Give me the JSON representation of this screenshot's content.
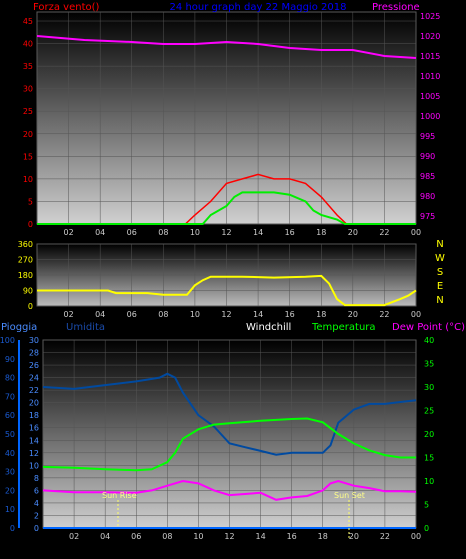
{
  "header": {
    "left_label": "Forza vento()",
    "center_label": "24 hour graph day  22 Maggio 2018",
    "right_label": "Pressione"
  },
  "panel3_header": {
    "pioggia": "Pioggia",
    "umidita": "Umidita",
    "windchill": "Windchill",
    "temperatura": "Temperatura",
    "dewpoint": "Dew Point (°C)"
  },
  "compass": [
    "N",
    "W",
    "S",
    "E",
    "N"
  ],
  "annotations": {
    "sunrise": "Sun Rise",
    "sunset": "Sun Set"
  },
  "colors": {
    "wind": "#ff0000",
    "gust": "#00ee00",
    "pressure": "#ff00ff",
    "direction": "#ffff00",
    "humidity": "#004aa0",
    "temperature": "#00ff00",
    "dewpoint": "#ff00ff",
    "rain": "#0066ff"
  },
  "chart_data": [
    {
      "type": "line",
      "x_ticks": [
        "02",
        "04",
        "06",
        "08",
        "10",
        "12",
        "14",
        "16",
        "18",
        "20",
        "22",
        "00"
      ],
      "left_axis": {
        "label": "Forza vento()",
        "ticks": [
          0,
          5,
          10,
          15,
          20,
          25,
          30,
          35,
          40,
          45
        ],
        "ylim": [
          0,
          47
        ]
      },
      "right_axis": {
        "label": "Pressione",
        "ticks": [
          975,
          980,
          985,
          990,
          995,
          1000,
          1005,
          1010,
          1015,
          1020,
          1025
        ],
        "ylim": [
          973,
          1026
        ]
      },
      "series": [
        {
          "axis": "right",
          "points": [
            [
              0,
              1020
            ],
            [
              3,
              1019
            ],
            [
              6,
              1018.5
            ],
            [
              8,
              1018
            ],
            [
              10,
              1018
            ],
            [
              12,
              1018.5
            ],
            [
              14,
              1018
            ],
            [
              16,
              1017
            ],
            [
              18,
              1016.5
            ],
            [
              20,
              1016.5
            ],
            [
              22,
              1015
            ],
            [
              24,
              1014.5
            ]
          ]
        },
        {
          "axis": "left",
          "points": [
            [
              0,
              0
            ],
            [
              9.4,
              0
            ],
            [
              10,
              2
            ],
            [
              11,
              5
            ],
            [
              12,
              9
            ],
            [
              13,
              10
            ],
            [
              14,
              11
            ],
            [
              15,
              10
            ],
            [
              16,
              10
            ],
            [
              17,
              9
            ],
            [
              18,
              6
            ],
            [
              19,
              2
            ],
            [
              19.6,
              0
            ],
            [
              24,
              0
            ]
          ]
        },
        {
          "axis": "left",
          "points": [
            [
              0,
              0
            ],
            [
              10.5,
              0
            ],
            [
              11,
              2
            ],
            [
              12,
              4
            ],
            [
              12.5,
              6
            ],
            [
              13,
              7
            ],
            [
              14,
              7
            ],
            [
              15,
              7
            ],
            [
              16,
              6.5
            ],
            [
              17,
              5
            ],
            [
              17.5,
              3
            ],
            [
              18,
              2
            ],
            [
              19,
              1
            ],
            [
              19.5,
              0
            ],
            [
              24,
              0
            ]
          ]
        }
      ]
    },
    {
      "type": "line",
      "x_ticks": [
        "02",
        "04",
        "06",
        "08",
        "10",
        "12",
        "14",
        "16",
        "18",
        "20",
        "22",
        "00"
      ],
      "left_axis": {
        "ticks": [
          0,
          90,
          180,
          270,
          360
        ],
        "ylim": [
          0,
          360
        ]
      },
      "series": [
        {
          "axis": "left",
          "points": [
            [
              0,
              90
            ],
            [
              4.5,
              90
            ],
            [
              5,
              75
            ],
            [
              7,
              75
            ],
            [
              8,
              65
            ],
            [
              9.5,
              65
            ],
            [
              10,
              120
            ],
            [
              10.5,
              150
            ],
            [
              11,
              170
            ],
            [
              13,
              170
            ],
            [
              15,
              165
            ],
            [
              17,
              170
            ],
            [
              18,
              175
            ],
            [
              18.5,
              130
            ],
            [
              19,
              40
            ],
            [
              19.5,
              5
            ],
            [
              22,
              5
            ],
            [
              23,
              40
            ],
            [
              23.5,
              60
            ],
            [
              24,
              90
            ]
          ]
        }
      ]
    },
    {
      "type": "line",
      "x_ticks": [
        "02",
        "04",
        "06",
        "08",
        "10",
        "12",
        "14",
        "16",
        "18",
        "20",
        "22",
        "00"
      ],
      "left_axis": {
        "label": "Pioggia / Umidita",
        "rain_ticks": [
          0,
          2,
          4,
          6,
          8,
          10,
          12,
          14,
          16,
          18,
          20,
          22,
          24,
          26,
          28,
          30
        ],
        "humidity_ticks": [
          0,
          10,
          20,
          30,
          40,
          50,
          60,
          70,
          80,
          90,
          100
        ],
        "ylim": [
          0,
          100
        ]
      },
      "right_axis": {
        "label": "Temperatura / Dew Point",
        "ticks": [
          0,
          5,
          10,
          15,
          20,
          25,
          30,
          35,
          40
        ],
        "ylim": [
          0,
          40
        ]
      },
      "series": [
        {
          "axis": "left",
          "points": [
            [
              0,
              75
            ],
            [
              2,
              74
            ],
            [
              4,
              76
            ],
            [
              6,
              78
            ],
            [
              7.5,
              80
            ],
            [
              8,
              82
            ],
            [
              8.5,
              80
            ],
            [
              9,
              72
            ],
            [
              10,
              60
            ],
            [
              11,
              54
            ],
            [
              12,
              45
            ],
            [
              13,
              43
            ],
            [
              14,
              41
            ],
            [
              15,
              39
            ],
            [
              16,
              40
            ],
            [
              17,
              40
            ],
            [
              18,
              40
            ],
            [
              18.5,
              44
            ],
            [
              19,
              56
            ],
            [
              20,
              63
            ],
            [
              21,
              66
            ],
            [
              22,
              66
            ],
            [
              23,
              67
            ],
            [
              24,
              68
            ]
          ]
        },
        {
          "axis": "right",
          "points": [
            [
              0,
              13
            ],
            [
              2,
              12.8
            ],
            [
              4,
              12.5
            ],
            [
              6,
              12.3
            ],
            [
              7,
              12.5
            ],
            [
              8,
              14
            ],
            [
              8.5,
              16
            ],
            [
              9,
              19
            ],
            [
              10,
              21
            ],
            [
              11,
              22
            ],
            [
              12,
              22.3
            ],
            [
              14,
              22.8
            ],
            [
              16,
              23.2
            ],
            [
              17,
              23.3
            ],
            [
              18,
              22.5
            ],
            [
              19,
              20
            ],
            [
              20,
              18
            ],
            [
              21,
              16.5
            ],
            [
              22,
              15.5
            ],
            [
              23,
              15
            ],
            [
              24,
              15
            ]
          ]
        },
        {
          "axis": "right",
          "points": [
            [
              0,
              8
            ],
            [
              2,
              7.6
            ],
            [
              4,
              7.6
            ],
            [
              6,
              7.5
            ],
            [
              7,
              8
            ],
            [
              8,
              9
            ],
            [
              9,
              10
            ],
            [
              10,
              9.5
            ],
            [
              11,
              8
            ],
            [
              12,
              7
            ],
            [
              14,
              7.5
            ],
            [
              15,
              6
            ],
            [
              16,
              6.5
            ],
            [
              17,
              6.8
            ],
            [
              18,
              8
            ],
            [
              18.5,
              9.5
            ],
            [
              19,
              10
            ],
            [
              20,
              9
            ],
            [
              21,
              8.5
            ],
            [
              22,
              7.8
            ],
            [
              23,
              7.8
            ],
            [
              24,
              7.7
            ]
          ]
        },
        {
          "axis": "left",
          "points": [
            [
              0,
              0
            ],
            [
              24,
              0
            ]
          ]
        }
      ]
    }
  ]
}
